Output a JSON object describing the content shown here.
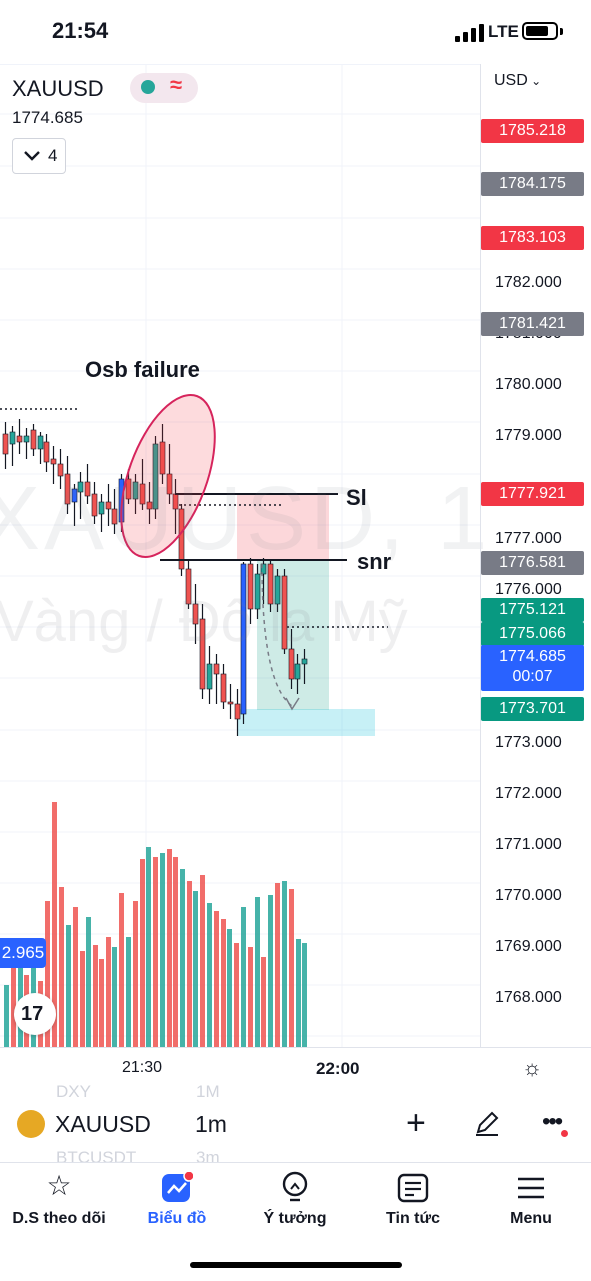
{
  "status_bar": {
    "time": "21:54",
    "network": "LTE"
  },
  "chart": {
    "symbol": "XAUUSD",
    "last_price": "1774.685",
    "collapse_count": "4",
    "currency": "USD",
    "watermark": {
      "line1": "XAUUSD, 1",
      "line2": "Vàng / Đô la Mỹ"
    },
    "annotations": {
      "osb": "Osb failure",
      "sl": "Sl",
      "snr": "snr"
    },
    "volume_label": "2.965",
    "logo": "17",
    "colors": {
      "up": "#26a69a",
      "down": "#ef5350",
      "blue": "#2962ff",
      "label_red": "#f23645",
      "label_gray": "#787b86",
      "label_green": "#089981"
    }
  },
  "price_axis": {
    "ticks": [
      "1782.000",
      "1781.000",
      "1780.000",
      "1779.000",
      "1777.000",
      "1776.000",
      "1773.000",
      "1772.000",
      "1771.000",
      "1770.000",
      "1769.000",
      "1768.000"
    ],
    "tags": [
      {
        "value": "1785.218",
        "color": "#f23645"
      },
      {
        "value": "1784.175",
        "color": "#787b86"
      },
      {
        "value": "1783.103",
        "color": "#f23645"
      },
      {
        "value": "1781.421",
        "color": "#787b86"
      },
      {
        "value": "1777.921",
        "color": "#f23645"
      },
      {
        "value": "1776.581",
        "color": "#787b86"
      },
      {
        "value": "1775.121",
        "color": "#089981"
      },
      {
        "value": "1775.066",
        "color": "#089981"
      },
      {
        "value": "1773.701",
        "color": "#089981"
      }
    ],
    "current_price": "1774.685",
    "countdown": "00:07"
  },
  "time_axis": {
    "labels": [
      "21:30",
      "22:00"
    ]
  },
  "symbol_bar": {
    "symbol": "XAUUSD",
    "interval": "1m",
    "ghost_rows": [
      {
        "symbol": "DXY",
        "interval": "1M"
      },
      {
        "symbol": "BTCUSDT",
        "interval": "3m"
      }
    ]
  },
  "bottom_nav": {
    "items": [
      {
        "label": "D.S theo dõi",
        "icon": "star-icon"
      },
      {
        "label": "Biểu đồ",
        "icon": "chart-icon"
      },
      {
        "label": "Ý tưởng",
        "icon": "lightbulb-icon"
      },
      {
        "label": "Tin tức",
        "icon": "news-icon"
      },
      {
        "label": "Menu",
        "icon": "menu-icon"
      }
    ]
  }
}
